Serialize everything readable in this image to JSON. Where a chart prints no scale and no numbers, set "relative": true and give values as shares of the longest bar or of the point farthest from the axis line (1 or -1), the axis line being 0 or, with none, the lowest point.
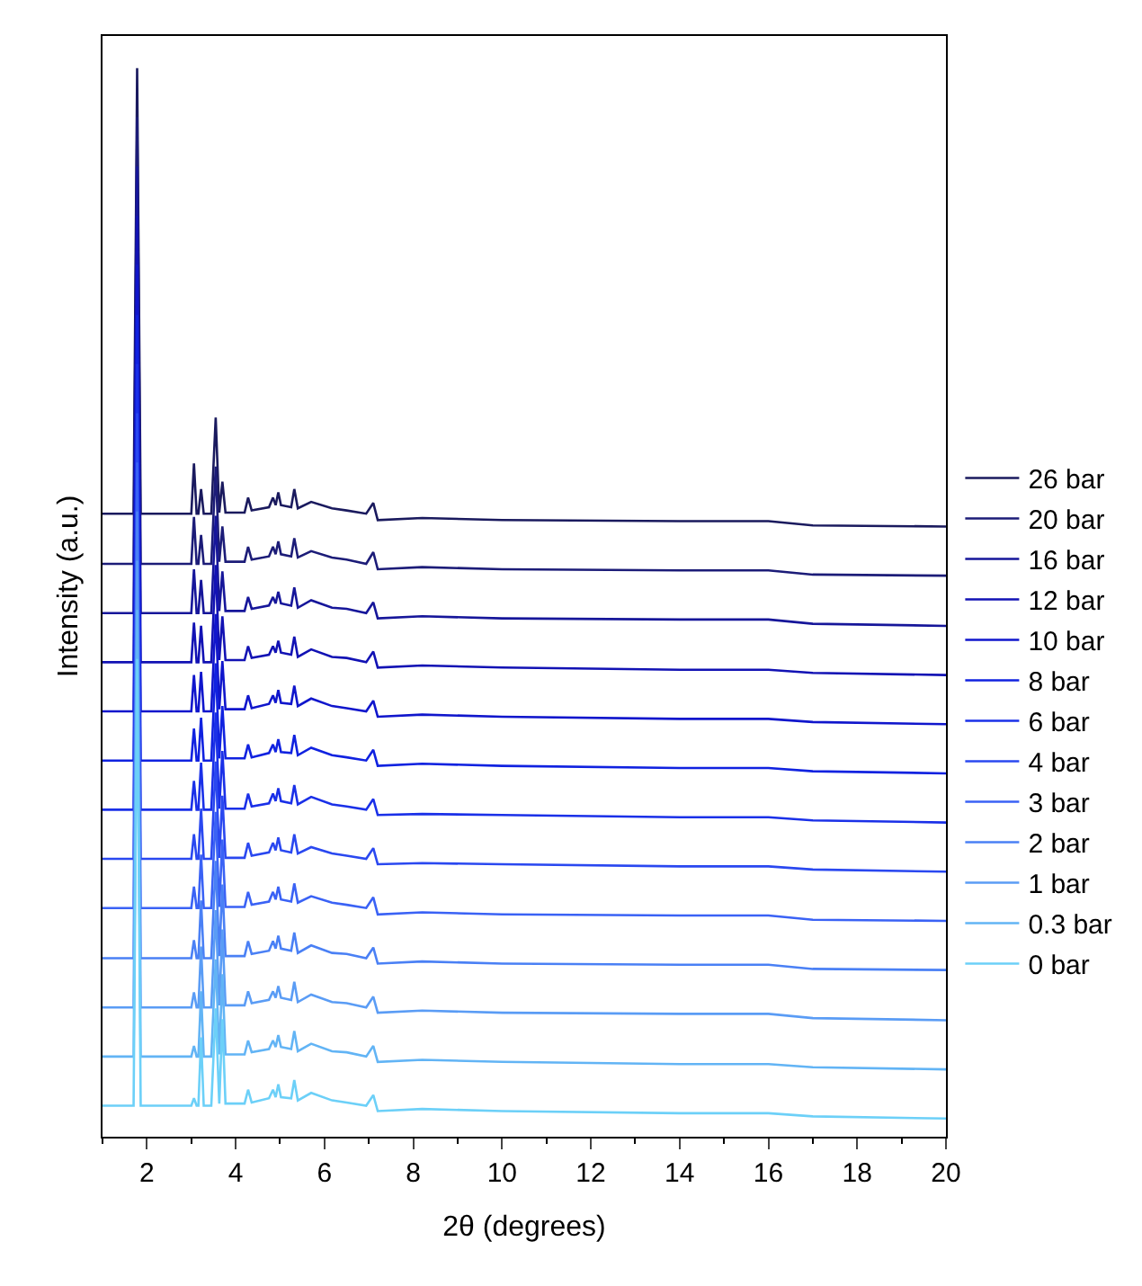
{
  "chart_data": {
    "type": "line",
    "relative": true,
    "xlabel": "2θ (degrees)",
    "ylabel": "Intensity (a.u.)",
    "xlim": [
      1,
      20
    ],
    "xticks": [
      2,
      4,
      6,
      8,
      10,
      12,
      14,
      16,
      18,
      20
    ],
    "legend": "right",
    "marker": "none",
    "line_style": "solid",
    "x": [
      1,
      1.7,
      1.78,
      1.86,
      2.9,
      3.0,
      3.06,
      3.12,
      3.16,
      3.22,
      3.28,
      3.45,
      3.55,
      3.63,
      3.7,
      3.77,
      4.2,
      4.28,
      4.36,
      4.75,
      4.84,
      4.9,
      4.96,
      5.02,
      5.25,
      5.32,
      5.4,
      5.7,
      6.17,
      6.5,
      6.94,
      7.1,
      7.2,
      8.2,
      10,
      14,
      16,
      17,
      20
    ],
    "series": [
      {
        "name": "26 bar",
        "color": "#1a1a5e",
        "values": [
          0.583,
          0.583,
          1.0,
          0.583,
          0.583,
          0.583,
          0.63,
          0.583,
          0.583,
          0.606,
          0.583,
          0.583,
          0.673,
          0.584,
          0.613,
          0.584,
          0.584,
          0.598,
          0.586,
          0.589,
          0.598,
          0.591,
          0.603,
          0.591,
          0.589,
          0.606,
          0.588,
          0.594,
          0.588,
          0.586,
          0.583,
          0.593,
          0.577,
          0.579,
          0.577,
          0.576,
          0.576,
          0.572,
          0.571
        ]
      },
      {
        "name": "20 bar",
        "color": "#1c1c78",
        "values": [
          0.536,
          0.536,
          0.954,
          0.536,
          0.536,
          0.536,
          0.58,
          0.536,
          0.536,
          0.563,
          0.536,
          0.536,
          0.627,
          0.538,
          0.571,
          0.538,
          0.538,
          0.552,
          0.54,
          0.543,
          0.552,
          0.545,
          0.557,
          0.545,
          0.543,
          0.56,
          0.542,
          0.548,
          0.542,
          0.54,
          0.536,
          0.547,
          0.531,
          0.533,
          0.531,
          0.53,
          0.53,
          0.526,
          0.525
        ]
      },
      {
        "name": "16 bar",
        "color": "#16169a",
        "values": [
          0.49,
          0.49,
          0.908,
          0.49,
          0.49,
          0.49,
          0.531,
          0.49,
          0.49,
          0.521,
          0.49,
          0.49,
          0.581,
          0.492,
          0.529,
          0.492,
          0.492,
          0.505,
          0.494,
          0.497,
          0.505,
          0.499,
          0.51,
          0.499,
          0.497,
          0.514,
          0.495,
          0.502,
          0.495,
          0.494,
          0.49,
          0.5,
          0.485,
          0.487,
          0.485,
          0.484,
          0.484,
          0.48,
          0.478
        ]
      },
      {
        "name": "12 bar",
        "color": "#1212b4",
        "values": [
          0.444,
          0.444,
          0.862,
          0.444,
          0.444,
          0.444,
          0.481,
          0.444,
          0.444,
          0.478,
          0.444,
          0.444,
          0.535,
          0.446,
          0.487,
          0.446,
          0.446,
          0.459,
          0.448,
          0.451,
          0.459,
          0.453,
          0.464,
          0.453,
          0.451,
          0.468,
          0.449,
          0.456,
          0.449,
          0.448,
          0.444,
          0.454,
          0.439,
          0.441,
          0.439,
          0.437,
          0.437,
          0.434,
          0.432
        ]
      },
      {
        "name": "10 bar",
        "color": "#1016cc",
        "values": [
          0.398,
          0.398,
          0.816,
          0.398,
          0.398,
          0.398,
          0.432,
          0.398,
          0.398,
          0.435,
          0.398,
          0.398,
          0.489,
          0.4,
          0.445,
          0.4,
          0.4,
          0.413,
          0.401,
          0.405,
          0.413,
          0.406,
          0.418,
          0.406,
          0.405,
          0.422,
          0.403,
          0.41,
          0.403,
          0.401,
          0.398,
          0.408,
          0.393,
          0.395,
          0.393,
          0.391,
          0.391,
          0.388,
          0.386
        ]
      },
      {
        "name": "8 bar",
        "color": "#1022e0",
        "values": [
          0.352,
          0.352,
          0.769,
          0.352,
          0.352,
          0.352,
          0.382,
          0.352,
          0.352,
          0.392,
          0.352,
          0.352,
          0.443,
          0.354,
          0.403,
          0.354,
          0.354,
          0.367,
          0.355,
          0.359,
          0.367,
          0.36,
          0.372,
          0.36,
          0.359,
          0.376,
          0.357,
          0.364,
          0.357,
          0.355,
          0.352,
          0.362,
          0.347,
          0.349,
          0.347,
          0.345,
          0.345,
          0.342,
          0.34
        ]
      },
      {
        "name": "6 bar",
        "color": "#1a30e8",
        "values": [
          0.306,
          0.306,
          0.723,
          0.306,
          0.306,
          0.306,
          0.333,
          0.306,
          0.306,
          0.35,
          0.306,
          0.306,
          0.397,
          0.307,
          0.361,
          0.307,
          0.307,
          0.321,
          0.309,
          0.312,
          0.321,
          0.314,
          0.326,
          0.314,
          0.312,
          0.329,
          0.311,
          0.318,
          0.311,
          0.309,
          0.306,
          0.316,
          0.301,
          0.302,
          0.301,
          0.299,
          0.299,
          0.296,
          0.294
        ]
      },
      {
        "name": "4 bar",
        "color": "#2a48f0",
        "values": [
          0.26,
          0.26,
          0.677,
          0.26,
          0.26,
          0.26,
          0.283,
          0.26,
          0.26,
          0.307,
          0.26,
          0.26,
          0.351,
          0.261,
          0.319,
          0.261,
          0.261,
          0.275,
          0.263,
          0.266,
          0.275,
          0.268,
          0.28,
          0.268,
          0.266,
          0.283,
          0.265,
          0.271,
          0.265,
          0.263,
          0.26,
          0.27,
          0.255,
          0.256,
          0.255,
          0.253,
          0.253,
          0.25,
          0.248
        ]
      },
      {
        "name": "3 bar",
        "color": "#3a62f5",
        "values": [
          0.214,
          0.214,
          0.631,
          0.214,
          0.214,
          0.214,
          0.234,
          0.214,
          0.214,
          0.264,
          0.214,
          0.214,
          0.304,
          0.215,
          0.278,
          0.215,
          0.215,
          0.229,
          0.217,
          0.22,
          0.229,
          0.222,
          0.234,
          0.222,
          0.22,
          0.237,
          0.219,
          0.225,
          0.219,
          0.217,
          0.214,
          0.224,
          0.208,
          0.21,
          0.208,
          0.207,
          0.207,
          0.203,
          0.202
        ]
      },
      {
        "name": "2 bar",
        "color": "#4a80f5",
        "values": [
          0.167,
          0.167,
          0.585,
          0.167,
          0.167,
          0.167,
          0.184,
          0.167,
          0.167,
          0.221,
          0.167,
          0.167,
          0.258,
          0.169,
          0.236,
          0.169,
          0.169,
          0.183,
          0.171,
          0.174,
          0.183,
          0.176,
          0.188,
          0.176,
          0.174,
          0.191,
          0.172,
          0.179,
          0.172,
          0.171,
          0.167,
          0.177,
          0.162,
          0.164,
          0.162,
          0.161,
          0.161,
          0.157,
          0.156
        ]
      },
      {
        "name": "1 bar",
        "color": "#5a9cf5",
        "values": [
          0.121,
          0.121,
          0.539,
          0.121,
          0.121,
          0.121,
          0.135,
          0.121,
          0.121,
          0.178,
          0.121,
          0.121,
          0.212,
          0.123,
          0.194,
          0.123,
          0.123,
          0.136,
          0.125,
          0.128,
          0.136,
          0.13,
          0.141,
          0.13,
          0.128,
          0.145,
          0.126,
          0.133,
          0.126,
          0.125,
          0.121,
          0.131,
          0.116,
          0.118,
          0.116,
          0.115,
          0.115,
          0.111,
          0.109
        ]
      },
      {
        "name": "0.3 bar",
        "color": "#62b4f5",
        "values": [
          0.075,
          0.075,
          0.493,
          0.075,
          0.075,
          0.075,
          0.085,
          0.075,
          0.075,
          0.136,
          0.075,
          0.075,
          0.166,
          0.077,
          0.152,
          0.077,
          0.077,
          0.09,
          0.079,
          0.082,
          0.09,
          0.084,
          0.095,
          0.084,
          0.082,
          0.099,
          0.08,
          0.087,
          0.08,
          0.079,
          0.075,
          0.085,
          0.07,
          0.072,
          0.07,
          0.068,
          0.068,
          0.065,
          0.063
        ]
      },
      {
        "name": "0 bar",
        "color": "#6cd0f8",
        "values": [
          0.029,
          0.029,
          0.447,
          0.029,
          0.029,
          0.029,
          0.036,
          0.029,
          0.029,
          0.093,
          0.029,
          0.029,
          0.12,
          0.031,
          0.11,
          0.031,
          0.031,
          0.044,
          0.032,
          0.036,
          0.044,
          0.037,
          0.049,
          0.037,
          0.036,
          0.053,
          0.034,
          0.041,
          0.034,
          0.032,
          0.029,
          0.039,
          0.024,
          0.026,
          0.024,
          0.022,
          0.022,
          0.019,
          0.017
        ]
      }
    ]
  }
}
